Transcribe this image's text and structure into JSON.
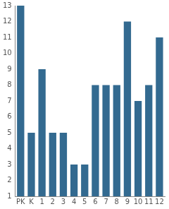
{
  "chart_data": {
    "type": "bar",
    "categories": [
      "PK",
      "K",
      "1",
      "2",
      "3",
      "4",
      "5",
      "6",
      "7",
      "8",
      "9",
      "10",
      "11",
      "12"
    ],
    "values": [
      13,
      5,
      9,
      5,
      5,
      3,
      3,
      8,
      8,
      8,
      12,
      7,
      8,
      11
    ],
    "color": "#336a90",
    "ylim": [
      1,
      13
    ],
    "yticks": [
      1,
      2,
      3,
      4,
      5,
      6,
      7,
      8,
      9,
      10,
      11,
      12,
      13
    ],
    "grid": false
  }
}
